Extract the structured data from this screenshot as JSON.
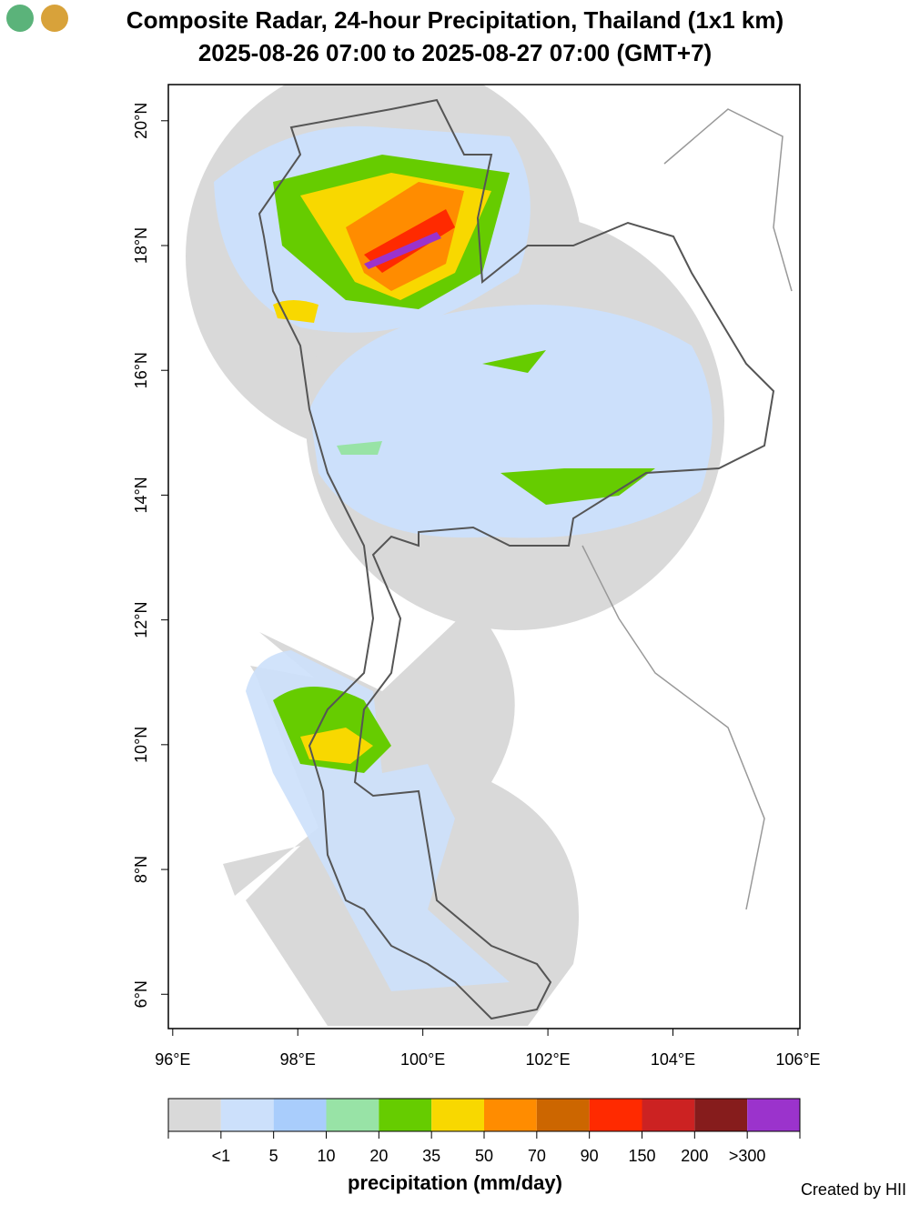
{
  "header": {
    "title": "Composite Radar, 24-hour Precipitation, Thailand (1x1 km)",
    "subtitle": "2025-08-26 07:00 to 2025-08-27 07:00 (GMT+7)"
  },
  "map": {
    "xlim": [
      95.93,
      106.03
    ],
    "ylim": [
      5.45,
      20.58
    ],
    "xticks": [
      {
        "value": 96,
        "label": "96°E"
      },
      {
        "value": 98,
        "label": "98°E"
      },
      {
        "value": 100,
        "label": "100°E"
      },
      {
        "value": 102,
        "label": "102°E"
      },
      {
        "value": 104,
        "label": "104°E"
      },
      {
        "value": 106,
        "label": "106°E"
      }
    ],
    "yticks": [
      {
        "value": 6,
        "label": "6°N"
      },
      {
        "value": 8,
        "label": "8°N"
      },
      {
        "value": 10,
        "label": "10°N"
      },
      {
        "value": 12,
        "label": "12°N"
      },
      {
        "value": 14,
        "label": "14°N"
      },
      {
        "value": 16,
        "label": "16°N"
      },
      {
        "value": 18,
        "label": "18°N"
      },
      {
        "value": 20,
        "label": "20°N"
      }
    ]
  },
  "legend": {
    "title": "precipitation (mm/day)",
    "colors": [
      "#d9d9d9",
      "#cce0fb",
      "#a9cdfc",
      "#98e3a6",
      "#66cc00",
      "#f8d800",
      "#ff8c00",
      "#cc6600",
      "#ff2a00",
      "#cc2222",
      "#861c1c",
      "#9b33cc"
    ],
    "labels": [
      "<1",
      "5",
      "10",
      "20",
      "35",
      "50",
      "70",
      "90",
      "150",
      "200",
      ">300"
    ]
  },
  "footer": {
    "credit": "Created by HII"
  }
}
